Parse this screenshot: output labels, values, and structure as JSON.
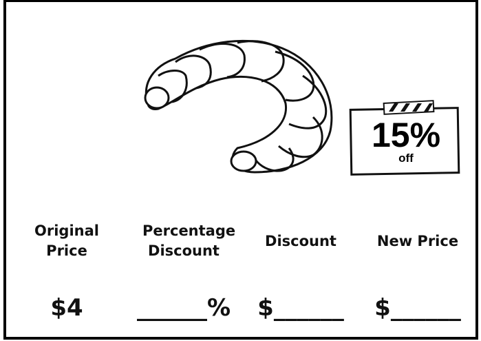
{
  "tag": {
    "percent": "15%",
    "label": "off"
  },
  "table": {
    "headers": [
      "Original Price",
      "Percentage Discount",
      "Discount",
      "New Price"
    ],
    "values": [
      "$4",
      "______%",
      "$______",
      "$______"
    ]
  }
}
